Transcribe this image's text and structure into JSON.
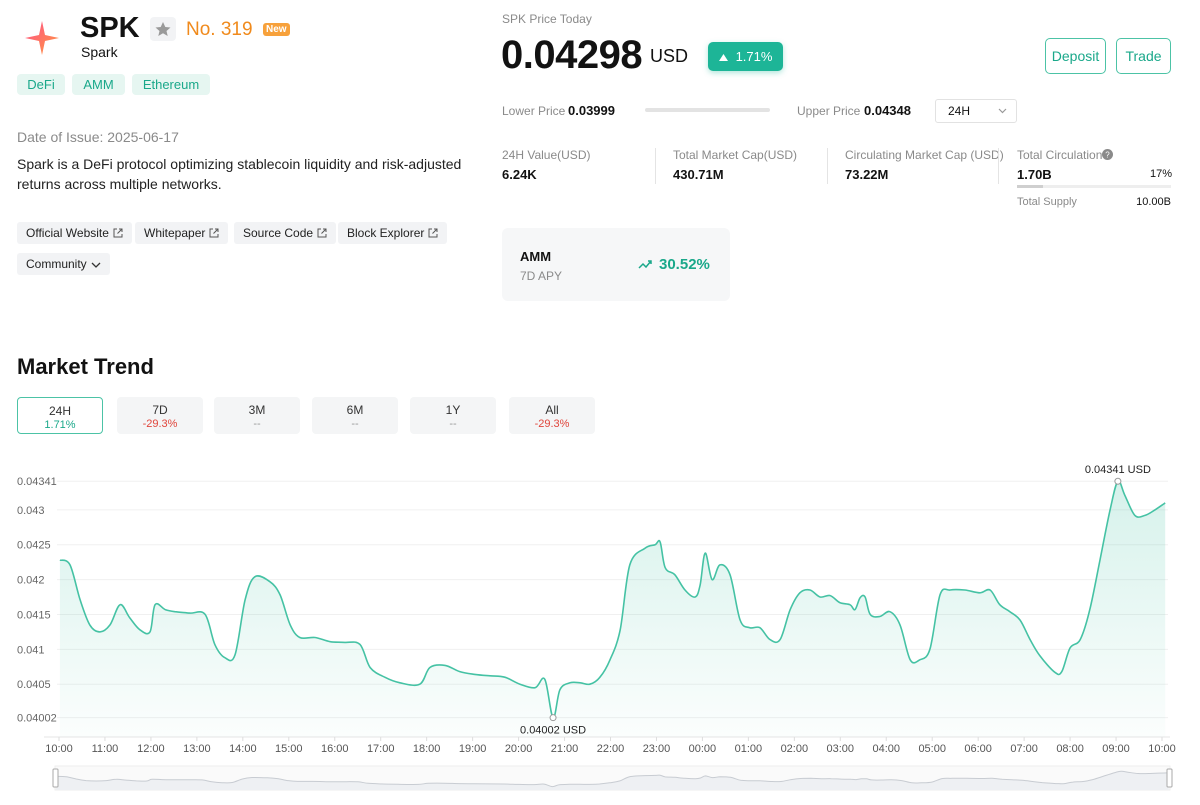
{
  "header": {
    "symbol": "SPK",
    "name": "Spark",
    "rank": "No. 319",
    "badge": "New",
    "tags": [
      "DeFi",
      "AMM",
      "Ethereum"
    ],
    "issue_date": "Date of Issue: 2025-06-17",
    "description": "Spark is a DeFi protocol optimizing stablecoin liquidity and risk-adjusted returns across multiple networks.",
    "links": [
      "Official Website",
      "Whitepaper",
      "Source Code",
      "Block Explorer"
    ],
    "community": "Community"
  },
  "price": {
    "label": "SPK Price Today",
    "value": "0.04298",
    "unit": "USD",
    "change": "1.71%",
    "lower_label": "Lower Price",
    "lower": "0.03999",
    "upper_label": "Upper Price",
    "upper": "0.04348",
    "period": "24H"
  },
  "buttons": [
    "Deposit",
    "Trade"
  ],
  "stats": [
    {
      "label": "24H Value(USD)",
      "value": "6.24K"
    },
    {
      "label": "Total Market Cap(USD)",
      "value": "430.71M"
    },
    {
      "label": "Circulating Market Cap (USD)",
      "value": "73.22M"
    }
  ],
  "circulation": {
    "label": "Total Circulation",
    "value": "1.70B",
    "percent": 17,
    "percent_label": "17%",
    "supply_label": "Total Supply",
    "supply": "10.00B"
  },
  "apy": {
    "label": "AMM",
    "sub": "7D APY",
    "value": "30.52%"
  },
  "trend": {
    "title": "Market Trend",
    "tabs": [
      {
        "label": "24H",
        "change": "1.71%",
        "color": "#1aa88a"
      },
      {
        "label": "7D",
        "change": "-29.3%",
        "color": "#e0463c"
      },
      {
        "label": "3M",
        "change": "--",
        "color": "#999999"
      },
      {
        "label": "6M",
        "change": "--",
        "color": "#999999"
      },
      {
        "label": "1Y",
        "change": "--",
        "color": "#999999"
      },
      {
        "label": "All",
        "change": "-29.3%",
        "color": "#e0463c"
      }
    ]
  },
  "chart_data": {
    "type": "line",
    "color": "#45c2a4",
    "x": [
      0.02,
      0.24,
      0.46,
      0.67,
      0.89,
      1.11,
      1.33,
      1.54,
      1.76,
      1.98,
      2.09,
      2.31,
      2.52,
      2.85,
      3.18,
      3.39,
      3.61,
      3.83,
      4.05,
      4.26,
      4.59,
      4.81,
      5.03,
      5.24,
      5.57,
      5.9,
      6.22,
      6.55,
      6.77,
      7.09,
      7.42,
      7.85,
      8.07,
      8.4,
      8.72,
      9.05,
      9.38,
      9.7,
      10.03,
      10.36,
      10.57,
      10.75,
      10.9,
      11.12,
      11.34,
      11.55,
      11.77,
      11.99,
      12.21,
      12.42,
      12.75,
      12.97,
      13.08,
      13.19,
      13.4,
      13.62,
      13.84,
      13.95,
      14.06,
      14.21,
      14.38,
      14.6,
      14.82,
      15.03,
      15.25,
      15.47,
      15.69,
      15.91,
      16.12,
      16.34,
      16.56,
      16.78,
      16.99,
      17.21,
      17.32,
      17.43,
      17.54,
      17.65,
      17.86,
      18.08,
      18.3,
      18.52,
      18.73,
      18.95,
      19.17,
      19.39,
      19.71,
      20.04,
      20.26,
      20.47,
      20.69,
      20.91,
      21.13,
      21.34,
      21.67,
      21.82,
      22.0,
      22.22,
      22.43,
      22.65,
      22.87,
      23.04,
      23.19,
      23.41,
      23.63,
      23.85,
      24.07
    ],
    "values": [
      0.04228,
      0.04221,
      0.04171,
      0.04135,
      0.04125,
      0.04135,
      0.04164,
      0.04145,
      0.04128,
      0.04125,
      0.04164,
      0.04157,
      0.04154,
      0.04152,
      0.0415,
      0.04107,
      0.04088,
      0.04092,
      0.04171,
      0.04204,
      0.04197,
      0.04178,
      0.04135,
      0.04117,
      0.04117,
      0.04111,
      0.0411,
      0.04107,
      0.04074,
      0.0406,
      0.04052,
      0.0405,
      0.04074,
      0.04077,
      0.04068,
      0.04064,
      0.04062,
      0.0406,
      0.0405,
      0.04045,
      0.04057,
      0.04002,
      0.04042,
      0.04052,
      0.04052,
      0.0405,
      0.0406,
      0.04085,
      0.04128,
      0.04221,
      0.04245,
      0.0425,
      0.04254,
      0.04217,
      0.04207,
      0.04185,
      0.04175,
      0.04192,
      0.04238,
      0.042,
      0.04221,
      0.04207,
      0.04142,
      0.04131,
      0.04131,
      0.04114,
      0.04114,
      0.04157,
      0.04181,
      0.04185,
      0.04175,
      0.04177,
      0.04167,
      0.04164,
      0.04157,
      0.04174,
      0.04175,
      0.0415,
      0.04147,
      0.04154,
      0.04135,
      0.04085,
      0.04085,
      0.041,
      0.04178,
      0.04185,
      0.04185,
      0.04181,
      0.04185,
      0.04164,
      0.04154,
      0.04142,
      0.04114,
      0.04091,
      0.04067,
      0.04068,
      0.04102,
      0.04114,
      0.04157,
      0.04228,
      0.043,
      0.04341,
      0.04321,
      0.04292,
      0.04292,
      0.043,
      0.0431
    ],
    "max_label": "0.04341 USD",
    "min_label": "0.04002 USD",
    "xlim": [
      0,
      24.1
    ],
    "xticks": [
      {
        "value": 0,
        "label": "10:00"
      },
      {
        "value": 1,
        "label": "11:00"
      },
      {
        "value": 2,
        "label": "12:00"
      },
      {
        "value": 3,
        "label": "13:00"
      },
      {
        "value": 4,
        "label": "14:00"
      },
      {
        "value": 5,
        "label": "15:00"
      },
      {
        "value": 6,
        "label": "16:00"
      },
      {
        "value": 7,
        "label": "17:00"
      },
      {
        "value": 8,
        "label": "18:00"
      },
      {
        "value": 9,
        "label": "19:00"
      },
      {
        "value": 10,
        "label": "20:00"
      },
      {
        "value": 11,
        "label": "21:00"
      },
      {
        "value": 12,
        "label": "22:00"
      },
      {
        "value": 13,
        "label": "23:00"
      },
      {
        "value": 14,
        "label": "00:00"
      },
      {
        "value": 15,
        "label": "01:00"
      },
      {
        "value": 16,
        "label": "02:00"
      },
      {
        "value": 17,
        "label": "03:00"
      },
      {
        "value": 18,
        "label": "04:00"
      },
      {
        "value": 19,
        "label": "05:00"
      },
      {
        "value": 20,
        "label": "06:00"
      },
      {
        "value": 21,
        "label": "07:00"
      },
      {
        "value": 22,
        "label": "08:00"
      },
      {
        "value": 23,
        "label": "09:00"
      },
      {
        "value": 24,
        "label": "10:00"
      }
    ],
    "ylim": [
      0.0397,
      0.0437
    ],
    "yticks": [
      0.04002,
      0.0405,
      0.041,
      0.0415,
      0.042,
      0.0425,
      0.043,
      0.04341
    ],
    "grid": true
  }
}
